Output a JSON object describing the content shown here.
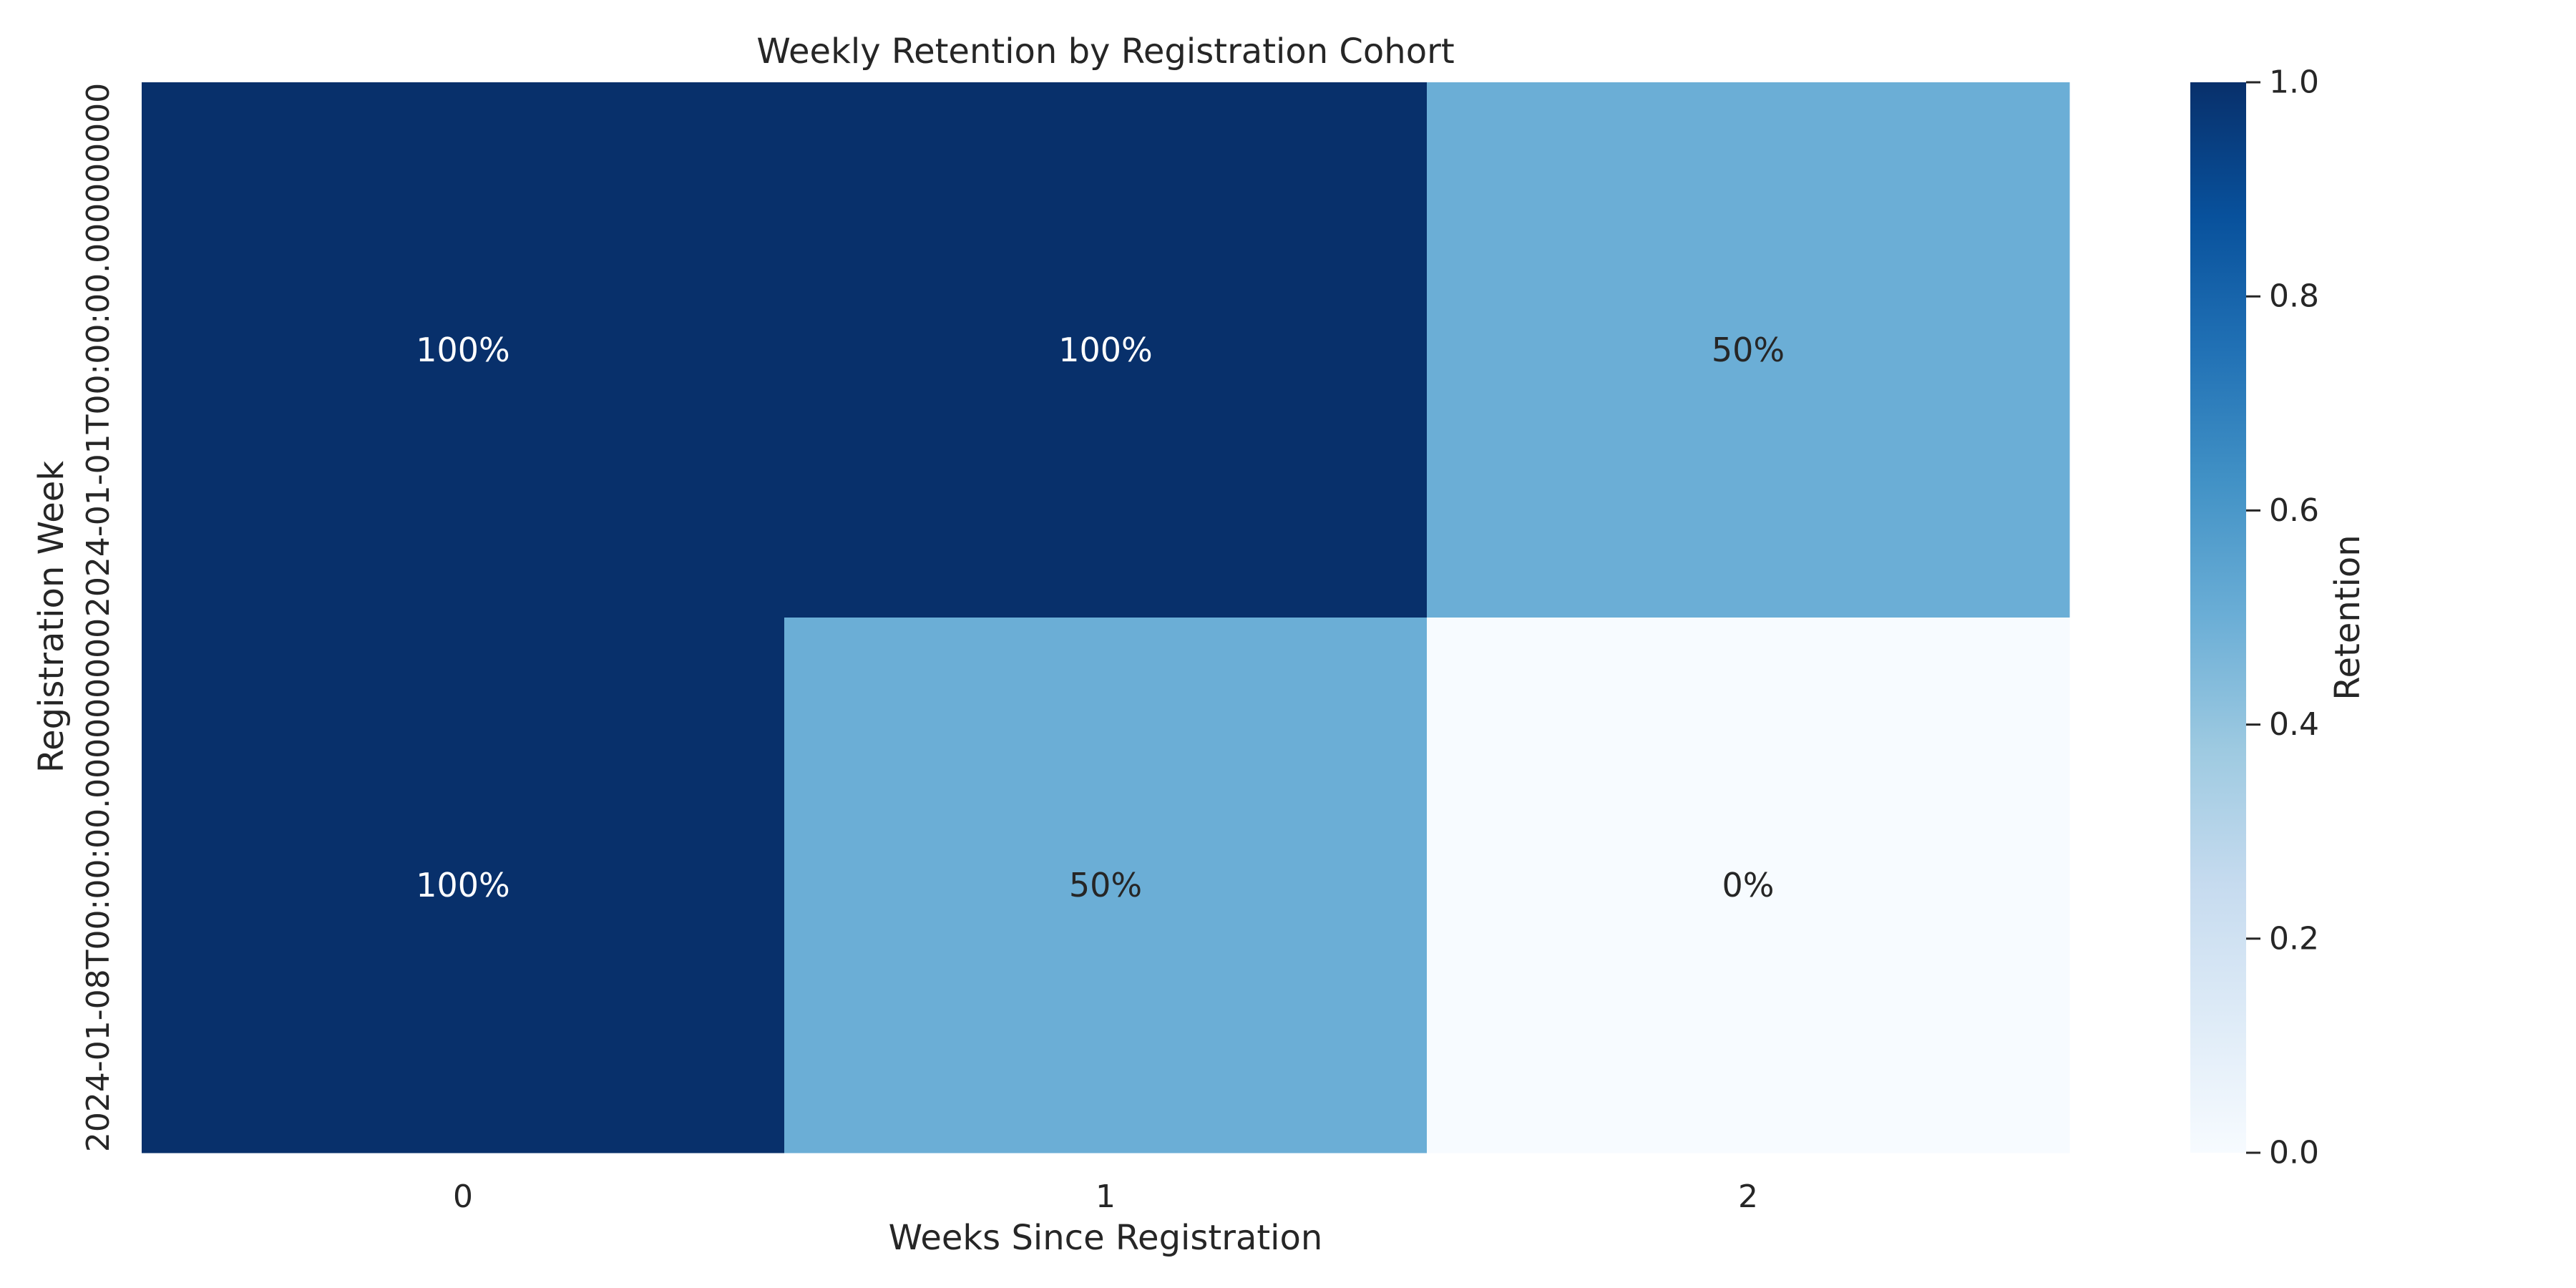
{
  "chart_data": {
    "type": "heatmap",
    "title": "Weekly Retention by Registration Cohort",
    "xlabel": "Weeks Since Registration",
    "ylabel": "Registration Week",
    "x_categories": [
      "0",
      "1",
      "2"
    ],
    "y_categories": [
      "2024-01-01T00:00:00.000000000",
      "2024-01-08T00:00:00.000000000"
    ],
    "values": [
      [
        1.0,
        1.0,
        0.5
      ],
      [
        1.0,
        0.5,
        0.0
      ]
    ],
    "annotations": [
      [
        "100%",
        "100%",
        "50%"
      ],
      [
        "100%",
        "50%",
        "0%"
      ]
    ],
    "colormap": "Blues",
    "vmin": 0.0,
    "vmax": 1.0,
    "colorbar": {
      "label": "Retention",
      "ticks": [
        0.0,
        0.2,
        0.4,
        0.6,
        0.8,
        1.0
      ],
      "tick_labels": [
        "0.0",
        "0.2",
        "0.4",
        "0.6",
        "0.8",
        "1.0"
      ]
    },
    "grid": false
  }
}
